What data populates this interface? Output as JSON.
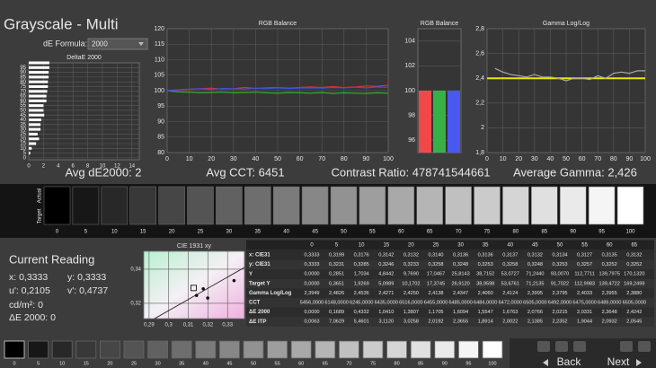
{
  "header": {
    "title": "Grayscale - Multi",
    "de_formula_label": "dE Formula:",
    "de_formula_value": "2000"
  },
  "delta_e_chart": {
    "type": "bar",
    "title": "DeltaE 2000",
    "categories": [
      0,
      5,
      10,
      15,
      20,
      25,
      30,
      35,
      40,
      45,
      50,
      55,
      60,
      65,
      70,
      75,
      80,
      85,
      90,
      95,
      100
    ],
    "values": [
      0,
      0.2,
      0.4,
      1.0,
      1.4,
      1.2,
      1.6,
      1.6,
      1.7,
      2.1,
      2.0,
      2.0,
      2.4,
      2.4,
      2.5,
      2.6,
      2.6,
      2.7,
      2.7,
      2.8,
      2.8
    ],
    "color": "#ffffff",
    "xlim": [
      0,
      15
    ],
    "xticks": [
      0,
      2,
      4,
      6,
      8,
      10,
      12,
      14
    ],
    "ylim": [
      -2,
      100
    ],
    "yticks": [
      0,
      5,
      10,
      15,
      20,
      25,
      30,
      35,
      40,
      45,
      50,
      55,
      60,
      65,
      70,
      75,
      80,
      85,
      90,
      95
    ],
    "grid": true
  },
  "rgb_chart": {
    "type": "line",
    "title": "RGB Balance",
    "x": [
      0,
      5,
      10,
      15,
      20,
      25,
      30,
      35,
      40,
      45,
      50,
      55,
      60,
      65,
      70,
      75,
      80,
      85,
      90,
      95,
      100
    ],
    "series": [
      {
        "color": "#e03030",
        "values": [
          100,
          100.2,
          100.4,
          100.6,
          100.8,
          100.5,
          100.6,
          101,
          100.7,
          100.9,
          101,
          100.8,
          101,
          101.2,
          101,
          101.3,
          101,
          101.2,
          101.5,
          101.4,
          101.8
        ]
      },
      {
        "color": "#30b030",
        "values": [
          100,
          99.6,
          99.5,
          99.3,
          99.4,
          99.5,
          99.3,
          99.4,
          99.5,
          99.3,
          99.2,
          99.4,
          99.3,
          99.2,
          99.4,
          99.1,
          99.3,
          99.2,
          99.1,
          99.3,
          99.2
        ]
      },
      {
        "color": "#4050e0",
        "values": [
          100,
          100.3,
          100.5,
          100.6,
          100.4,
          100.7,
          100.6,
          100.5,
          100.8,
          100.7,
          100.9,
          100.7,
          100.8,
          100.9,
          100.8,
          101,
          100.9,
          101.1,
          100.9,
          101.2,
          101.1
        ]
      }
    ],
    "xlim": [
      0,
      100
    ],
    "xticks": [
      0,
      10,
      20,
      30,
      40,
      50,
      60,
      70,
      80,
      90,
      100
    ],
    "ylim": [
      80,
      120
    ],
    "yticks": [
      80,
      85,
      90,
      95,
      100,
      105,
      110,
      115,
      120
    ],
    "grid": true
  },
  "rgb_bars": {
    "type": "bar",
    "title": "RGB Balance",
    "values": [
      100,
      100,
      100
    ],
    "colors": [
      "#f04848",
      "#38b048",
      "#4858f0"
    ],
    "ylim": [
      95,
      105
    ],
    "yticks": [
      96,
      98,
      100,
      102,
      104
    ],
    "grid": true
  },
  "gamma_chart": {
    "type": "line",
    "title": "Gamma Log/Log",
    "x": [
      5,
      10,
      15,
      20,
      25,
      30,
      35,
      40,
      45,
      50,
      55,
      60,
      65,
      70,
      75,
      80,
      85,
      90,
      95,
      100
    ],
    "series": [
      {
        "color": "#a8a8a8",
        "values": [
          2.48,
          2.45,
          2.43,
          2.42,
          2.41,
          2.43,
          2.41,
          2.41,
          2.4,
          2.38,
          2.4,
          2.4,
          2.39,
          2.42,
          2.4,
          2.44,
          2.45,
          2.44,
          2.46,
          2.46
        ]
      }
    ],
    "target": 2.4,
    "target_color": "#e8e800",
    "xlim": [
      0,
      100
    ],
    "xticks": [
      0,
      10,
      20,
      30,
      40,
      50,
      60,
      70,
      80,
      90,
      100
    ],
    "ylim": [
      1.8,
      2.8
    ],
    "yticks": [
      {
        "value": 1.8,
        "label": "1,8"
      },
      2,
      {
        "value": 2.2,
        "label": "2,2"
      },
      {
        "value": 2.4,
        "label": "2,4"
      },
      {
        "value": 2.6,
        "label": "2,6"
      },
      {
        "value": 2.8,
        "label": "2,8"
      }
    ],
    "grid": true
  },
  "stats": [
    "Avg dE2000: 2",
    "Avg CCT: 6451",
    "Contrast Ratio: 478741544661",
    "Average Gamma: 2,426"
  ],
  "swatches": {
    "actual_label": "Actual",
    "target_label": "Target",
    "levels": [
      0,
      5,
      10,
      15,
      20,
      25,
      30,
      35,
      40,
      45,
      50,
      55,
      60,
      65,
      70,
      75,
      80,
      85,
      90,
      95,
      100
    ]
  },
  "current_reading": {
    "title": "Current Reading",
    "lines": [
      "x: 0,3333",
      "y: 0,3333",
      "u': 0,2105",
      "v': 0,4737",
      "cd/m²: 0",
      "ΔE 2000: 0"
    ]
  },
  "cie_chart": {
    "type": "scatter",
    "title": "CIE 1931 xy",
    "target": {
      "x": 0.3127,
      "y": 0.329
    },
    "x": [
      0.3333,
      0.3199,
      0.3176,
      0.3142
    ],
    "y": [
      0.3333,
      0.3231,
      0.3285,
      0.3246
    ],
    "xlim": [
      0.2873,
      0.3386
    ],
    "xticks": [
      {
        "value": 0.29,
        "label": "0,29"
      },
      {
        "value": 0.3,
        "label": "0,3"
      },
      {
        "value": 0.31,
        "label": "0,31"
      },
      {
        "value": 0.32,
        "label": "0,32"
      },
      {
        "value": 0.33,
        "label": "0,33"
      }
    ],
    "ylim": [
      0.311,
      0.3505
    ],
    "yticks": [
      {
        "value": 0.32,
        "label": "0,32"
      },
      {
        "value": 0.34,
        "label": "0,34"
      }
    ]
  },
  "table": {
    "columns": [
      0,
      5,
      10,
      15,
      20,
      25,
      30,
      35,
      40,
      45,
      50,
      55,
      60,
      65
    ],
    "rows": [
      {
        "label": "x: CIE31",
        "values": [
          "0,3333",
          "0,3199",
          "0,3176",
          "0,3142",
          "0,3132",
          "0,3140",
          "0,3136",
          "0,3136",
          "0,3137",
          "0,3132",
          "0,3134",
          "0,3127",
          "0,3135",
          "0,3132"
        ]
      },
      {
        "label": "y: CIE31",
        "values": [
          "0,3333",
          "0,3231",
          "0,3285",
          "0,3246",
          "0,3233",
          "0,3258",
          "0,3248",
          "0,3253",
          "0,3258",
          "0,3248",
          "0,3253",
          "0,3257",
          "0,3252",
          "0,3252"
        ]
      },
      {
        "label": "Y",
        "values": [
          "0,0000",
          "0,2851",
          "1,7034",
          "4,8442",
          "9,7690",
          "17,0467",
          "25,8143",
          "38,7152",
          "53,0727",
          "71,2440",
          "93,0070",
          "112,7711",
          "139,7975",
          "170,1320"
        ]
      },
      {
        "label": "Target Y",
        "values": [
          "0,0000",
          "0,3651",
          "1,9269",
          "5,0989",
          "10,1702",
          "17,3745",
          "26,9120",
          "38,9598",
          "53,6761",
          "71,2135",
          "91,7022",
          "112,9983",
          "139,4722",
          "169,2499"
        ]
      },
      {
        "label": "Gamma Log/Log",
        "values": [
          "2,3949",
          "2,4826",
          "2,4536",
          "2,4271",
          "2,4250",
          "2,4138",
          "2,4347",
          "2,4060",
          "2,4124",
          "2,3995",
          "2,3795",
          "2,4033",
          "2,3955",
          "2,3880"
        ]
      },
      {
        "label": "CCT",
        "values": [
          "5456,0000",
          "6148,0000",
          "6245,0000",
          "6435,0000",
          "6516,0000",
          "6455,0000",
          "6485,0000",
          "6484,0000",
          "6472,0000",
          "6505,0000",
          "6492,0000",
          "6475,0000",
          "6489,0000",
          "6505,0000"
        ]
      },
      {
        "label": "ΔE 2000",
        "values": [
          "0,0000",
          "0,1689",
          "0,4332",
          "1,0410",
          "1,3807",
          "1,1705",
          "1,6094",
          "1,5547",
          "1,6763",
          "2,0766",
          "2,0215",
          "2,0331",
          "2,3648",
          "2,4242"
        ]
      },
      {
        "label": "ΔE ITP",
        "values": [
          "0,0063",
          "7,0629",
          "5,4601",
          "3,1120",
          "3,0258",
          "2,0192",
          "2,3655",
          "1,8914",
          "2,0022",
          "2,1385",
          "2,2352",
          "1,9044",
          "2,0932",
          "2,0545"
        ]
      }
    ]
  },
  "bottom": {
    "levels": [
      0,
      5,
      10,
      15,
      20,
      25,
      30,
      35,
      40,
      45,
      50,
      55,
      60,
      65,
      70,
      75,
      80,
      85,
      90,
      95,
      100
    ],
    "back": "Back",
    "next": "Next"
  }
}
